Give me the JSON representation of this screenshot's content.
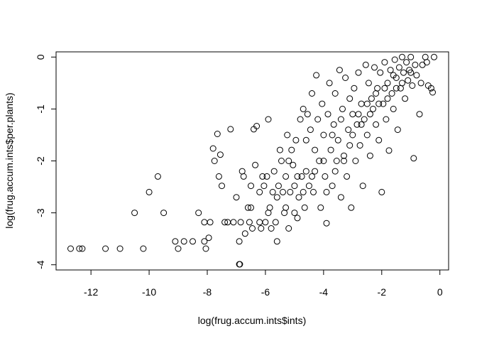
{
  "chart_data": {
    "type": "scatter",
    "title": "",
    "xlabel": "log(frug.accum.ints$ints)",
    "ylabel": "log(frug.accum.ints$per.plants)",
    "xlim": [
      -13.2,
      0.3
    ],
    "ylim": [
      -4.1,
      0.1
    ],
    "x_ticks": [
      -12,
      -10,
      -8,
      -6,
      -4,
      -2,
      0
    ],
    "y_ticks": [
      -4,
      -3,
      -2,
      -1,
      0
    ],
    "x_tick_labels": [
      "-12",
      "-10",
      "-8",
      "-6",
      "-4",
      "-2",
      "0"
    ],
    "y_tick_labels": [
      "-4",
      "-3",
      "-2",
      "-1",
      "0"
    ],
    "grid": false,
    "legend": "none",
    "point_style": "open-circle",
    "series": [
      {
        "points": [
          [
            -12.7,
            -3.69
          ],
          [
            -12.4,
            -3.69
          ],
          [
            -12.3,
            -3.69
          ],
          [
            -11.5,
            -3.69
          ],
          [
            -11.0,
            -3.69
          ],
          [
            -10.2,
            -3.69
          ],
          [
            -10.5,
            -3.0
          ],
          [
            -10.0,
            -2.6
          ],
          [
            -9.7,
            -2.3
          ],
          [
            -9.5,
            -3.0
          ],
          [
            -9.1,
            -3.55
          ],
          [
            -9.0,
            -3.69
          ],
          [
            -8.8,
            -3.55
          ],
          [
            -8.5,
            -3.55
          ],
          [
            -8.3,
            -3.0
          ],
          [
            -8.1,
            -3.18
          ],
          [
            -8.1,
            -3.55
          ],
          [
            -8.05,
            -3.69
          ],
          [
            -7.95,
            -3.48
          ],
          [
            -7.9,
            -3.18
          ],
          [
            -7.8,
            -1.76
          ],
          [
            -7.75,
            -2.0
          ],
          [
            -7.65,
            -1.48
          ],
          [
            -7.6,
            -2.3
          ],
          [
            -7.55,
            -1.88
          ],
          [
            -7.5,
            -2.48
          ],
          [
            -7.4,
            -3.18
          ],
          [
            -7.3,
            -3.18
          ],
          [
            -7.2,
            -1.39
          ],
          [
            -7.1,
            -3.18
          ],
          [
            -7.0,
            -2.7
          ],
          [
            -6.9,
            -3.55
          ],
          [
            -6.85,
            -3.18
          ],
          [
            -6.8,
            -2.2
          ],
          [
            -6.75,
            -2.3
          ],
          [
            -6.7,
            -3.4
          ],
          [
            -6.9,
            -3.99
          ],
          [
            -6.88,
            -3.99
          ],
          [
            -6.6,
            -2.9
          ],
          [
            -6.55,
            -3.18
          ],
          [
            -6.5,
            -2.48
          ],
          [
            -6.5,
            -2.9
          ],
          [
            -6.45,
            -3.3
          ],
          [
            -6.4,
            -1.39
          ],
          [
            -6.35,
            -2.08
          ],
          [
            -6.3,
            -1.33
          ],
          [
            -6.2,
            -3.18
          ],
          [
            -6.15,
            -3.3
          ],
          [
            -6.1,
            -2.3
          ],
          [
            -6.05,
            -2.48
          ],
          [
            -6.0,
            -3.18
          ],
          [
            -5.95,
            -2.3
          ],
          [
            -5.9,
            -1.2
          ],
          [
            -5.85,
            -2.9
          ],
          [
            -5.8,
            -3.3
          ],
          [
            -5.75,
            -2.6
          ],
          [
            -5.7,
            -2.2
          ],
          [
            -5.65,
            -3.18
          ],
          [
            -5.6,
            -3.55
          ],
          [
            -5.55,
            -2.48
          ],
          [
            -5.5,
            -1.79
          ],
          [
            -5.45,
            -2.0
          ],
          [
            -5.4,
            -2.6
          ],
          [
            -5.35,
            -3.0
          ],
          [
            -5.3,
            -2.3
          ],
          [
            -5.25,
            -1.5
          ],
          [
            -5.2,
            -3.3
          ],
          [
            -5.15,
            -2.6
          ],
          [
            -5.1,
            -1.79
          ],
          [
            -5.05,
            -2.08
          ],
          [
            -5.0,
            -2.48
          ],
          [
            -4.95,
            -1.6
          ],
          [
            -4.9,
            -3.1
          ],
          [
            -4.85,
            -2.7
          ],
          [
            -4.8,
            -1.2
          ],
          [
            -4.75,
            -2.3
          ],
          [
            -4.7,
            -1.0
          ],
          [
            -4.65,
            -2.9
          ],
          [
            -4.6,
            -2.2
          ],
          [
            -4.55,
            -1.1
          ],
          [
            -4.5,
            -2.48
          ],
          [
            -4.45,
            -1.4
          ],
          [
            -4.4,
            -0.7
          ],
          [
            -4.35,
            -2.6
          ],
          [
            -4.3,
            -1.79
          ],
          [
            -4.25,
            -0.35
          ],
          [
            -4.2,
            -1.2
          ],
          [
            -4.15,
            -2.0
          ],
          [
            -4.1,
            -2.9
          ],
          [
            -4.05,
            -0.9
          ],
          [
            -4.0,
            -1.5
          ],
          [
            -3.95,
            -2.3
          ],
          [
            -3.9,
            -3.2
          ],
          [
            -3.85,
            -1.1
          ],
          [
            -3.8,
            -0.5
          ],
          [
            -3.75,
            -1.79
          ],
          [
            -3.7,
            -2.48
          ],
          [
            -3.65,
            -1.3
          ],
          [
            -3.6,
            -0.7
          ],
          [
            -3.55,
            -2.0
          ],
          [
            -3.5,
            -1.6
          ],
          [
            -3.45,
            -0.25
          ],
          [
            -3.4,
            -2.7
          ],
          [
            -3.35,
            -1.0
          ],
          [
            -3.3,
            -1.9
          ],
          [
            -3.25,
            -0.4
          ],
          [
            -3.2,
            -2.3
          ],
          [
            -3.15,
            -1.4
          ],
          [
            -3.1,
            -0.8
          ],
          [
            -3.05,
            -2.9
          ],
          [
            -3.0,
            -1.1
          ],
          [
            -2.95,
            -0.6
          ],
          [
            -2.9,
            -2.0
          ],
          [
            -2.85,
            -1.3
          ],
          [
            -2.8,
            -0.3
          ],
          [
            -2.75,
            -1.7
          ],
          [
            -2.7,
            -0.9
          ],
          [
            -2.65,
            -2.48
          ],
          [
            -2.6,
            -1.2
          ],
          [
            -2.55,
            -0.15
          ],
          [
            -2.5,
            -1.5
          ],
          [
            -2.45,
            -0.5
          ],
          [
            -2.4,
            -1.9
          ],
          [
            -2.35,
            -0.8
          ],
          [
            -2.3,
            -1.0
          ],
          [
            -2.25,
            -0.2
          ],
          [
            -2.2,
            -1.3
          ],
          [
            -2.15,
            -0.6
          ],
          [
            -2.1,
            -1.6
          ],
          [
            -2.05,
            -0.3
          ],
          [
            -2.0,
            -2.6
          ],
          [
            -1.95,
            -0.9
          ],
          [
            -1.9,
            -0.1
          ],
          [
            -1.85,
            -1.2
          ],
          [
            -1.8,
            -0.5
          ],
          [
            -1.75,
            -1.8
          ],
          [
            -1.7,
            -0.25
          ],
          [
            -1.65,
            -0.7
          ],
          [
            -1.6,
            -1.0
          ],
          [
            -1.55,
            -0.05
          ],
          [
            -1.5,
            -0.4
          ],
          [
            -1.45,
            -1.4
          ],
          [
            -1.4,
            -0.2
          ],
          [
            -1.35,
            -0.6
          ],
          [
            -1.3,
            -0.0
          ],
          [
            -1.25,
            -0.3
          ],
          [
            -1.2,
            -0.8
          ],
          [
            -1.15,
            -0.1
          ],
          [
            -1.1,
            -0.45
          ],
          [
            -1.05,
            -0.25
          ],
          [
            -1.0,
            -0.0
          ],
          [
            -0.95,
            -0.55
          ],
          [
            -0.9,
            -1.95
          ],
          [
            -0.85,
            -0.15
          ],
          [
            -0.8,
            -0.35
          ],
          [
            -0.7,
            -1.1
          ],
          [
            -0.65,
            -0.5
          ],
          [
            -0.6,
            -0.15
          ],
          [
            -0.5,
            -0.0
          ],
          [
            -0.45,
            -0.1
          ],
          [
            -0.4,
            -0.55
          ],
          [
            -0.3,
            -0.6
          ],
          [
            -0.25,
            -0.68
          ],
          [
            -0.2,
            -0.0
          ],
          [
            -5.6,
            -2.7
          ],
          [
            -5.2,
            -2.0
          ],
          [
            -4.9,
            -2.3
          ],
          [
            -4.6,
            -1.6
          ],
          [
            -4.3,
            -2.2
          ],
          [
            -4.0,
            -2.0
          ],
          [
            -3.7,
            -1.5
          ],
          [
            -3.4,
            -1.2
          ],
          [
            -3.1,
            -1.7
          ],
          [
            -2.8,
            -1.1
          ],
          [
            -2.5,
            -0.9
          ],
          [
            -2.2,
            -0.7
          ],
          [
            -1.9,
            -0.6
          ],
          [
            -1.6,
            -0.35
          ],
          [
            -1.3,
            -0.5
          ],
          [
            -1.0,
            -0.3
          ],
          [
            -6.2,
            -2.6
          ],
          [
            -5.9,
            -3.0
          ],
          [
            -5.3,
            -2.9
          ],
          [
            -5.0,
            -3.0
          ],
          [
            -4.7,
            -2.6
          ],
          [
            -4.4,
            -2.3
          ],
          [
            -3.9,
            -2.6
          ],
          [
            -3.6,
            -2.2
          ],
          [
            -3.3,
            -2.0
          ],
          [
            -3.0,
            -1.5
          ],
          [
            -2.7,
            -1.3
          ],
          [
            -2.4,
            -1.1
          ],
          [
            -2.1,
            -0.9
          ],
          [
            -1.8,
            -0.8
          ],
          [
            -1.5,
            -0.6
          ]
        ]
      }
    ]
  }
}
